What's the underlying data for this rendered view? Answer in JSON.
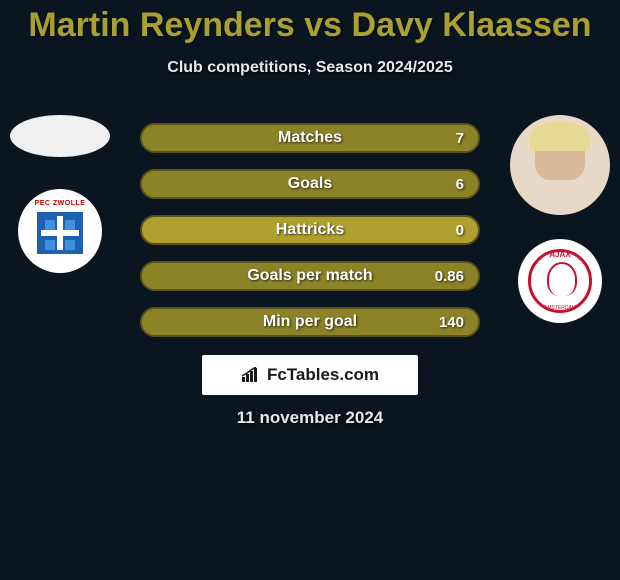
{
  "title": "Martin Reynders vs Davy Klaassen",
  "subtitle": "Club competitions, Season 2024/2025",
  "date": "11 november 2024",
  "badge_text": "FcTables.com",
  "colors": {
    "bar_bg": "#b0a030",
    "bar_fill": "#8c8228",
    "bar_border": "#5a5218",
    "page_bg": "#0a1520",
    "title_color": "#a8a030"
  },
  "stats": [
    {
      "label": "Matches",
      "left_val": "",
      "right_val": "7",
      "right_fill_pct": 100,
      "left_fill_pct": 0
    },
    {
      "label": "Goals",
      "left_val": "",
      "right_val": "6",
      "right_fill_pct": 100,
      "left_fill_pct": 0
    },
    {
      "label": "Hattricks",
      "left_val": "",
      "right_val": "0",
      "right_fill_pct": 0,
      "left_fill_pct": 0
    },
    {
      "label": "Goals per match",
      "left_val": "",
      "right_val": "0.86",
      "right_fill_pct": 100,
      "left_fill_pct": 0
    },
    {
      "label": "Min per goal",
      "left_val": "",
      "right_val": "140",
      "right_fill_pct": 100,
      "left_fill_pct": 0
    }
  ],
  "player_left": {
    "name": "Martin Reynders",
    "club": "PEC Zwolle",
    "club_badge_text": "PEC ZWOLLE"
  },
  "player_right": {
    "name": "Davy Klaassen",
    "club": "Ajax",
    "club_badge_text_top": "AJAX",
    "club_badge_text_bottom": "AMSTERDAM"
  }
}
